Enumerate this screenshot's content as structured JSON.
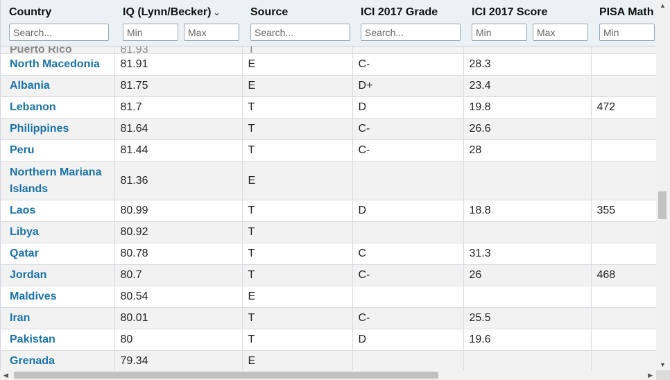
{
  "headers": {
    "country": {
      "title": "Country",
      "placeholder": "Search..."
    },
    "iq": {
      "title": "IQ (Lynn/Becker)",
      "min_placeholder": "Min",
      "max_placeholder": "Max",
      "sort_icon": "chevron-down-icon"
    },
    "source": {
      "title": "Source",
      "placeholder": "Search..."
    },
    "ici_grade": {
      "title": "ICI 2017 Grade",
      "placeholder": "Search..."
    },
    "ici_score": {
      "title": "ICI 2017 Score",
      "min_placeholder": "Min",
      "max_placeholder": "Max"
    },
    "pisa_math": {
      "title": "PISA Math Score",
      "min_placeholder": "Min"
    }
  },
  "partial_row": {
    "country": "Puerto Rico",
    "iq": "81.93",
    "source": "T"
  },
  "rows": [
    {
      "country": "North Macedonia",
      "iq": "81.91",
      "source": "E",
      "ici_grade": "C-",
      "ici_score": "28.3",
      "pisa_math": ""
    },
    {
      "country": "Albania",
      "iq": "81.75",
      "source": "E",
      "ici_grade": "D+",
      "ici_score": "23.4",
      "pisa_math": ""
    },
    {
      "country": "Lebanon",
      "iq": "81.7",
      "source": "T",
      "ici_grade": "D",
      "ici_score": "19.8",
      "pisa_math": "472"
    },
    {
      "country": "Philippines",
      "iq": "81.64",
      "source": "T",
      "ici_grade": "C-",
      "ici_score": "26.6",
      "pisa_math": ""
    },
    {
      "country": "Peru",
      "iq": "81.44",
      "source": "T",
      "ici_grade": "C-",
      "ici_score": "28",
      "pisa_math": ""
    },
    {
      "country": "Northern Mariana Islands",
      "iq": "81.36",
      "source": "E",
      "ici_grade": "",
      "ici_score": "",
      "pisa_math": ""
    },
    {
      "country": "Laos",
      "iq": "80.99",
      "source": "T",
      "ici_grade": "D",
      "ici_score": "18.8",
      "pisa_math": "355"
    },
    {
      "country": "Libya",
      "iq": "80.92",
      "source": "T",
      "ici_grade": "",
      "ici_score": "",
      "pisa_math": ""
    },
    {
      "country": "Qatar",
      "iq": "80.78",
      "source": "T",
      "ici_grade": "C",
      "ici_score": "31.3",
      "pisa_math": ""
    },
    {
      "country": "Jordan",
      "iq": "80.7",
      "source": "T",
      "ici_grade": "C-",
      "ici_score": "26",
      "pisa_math": "468"
    },
    {
      "country": "Maldives",
      "iq": "80.54",
      "source": "E",
      "ici_grade": "",
      "ici_score": "",
      "pisa_math": ""
    },
    {
      "country": "Iran",
      "iq": "80.01",
      "source": "T",
      "ici_grade": "C-",
      "ici_score": "25.5",
      "pisa_math": ""
    },
    {
      "country": "Pakistan",
      "iq": "80",
      "source": "T",
      "ici_grade": "D",
      "ici_score": "19.6",
      "pisa_math": ""
    },
    {
      "country": "Grenada",
      "iq": "79.34",
      "source": "E",
      "ici_grade": "",
      "ici_score": "",
      "pisa_math": ""
    }
  ],
  "colors": {
    "link": "#1a73a8",
    "header_bg": "#ecf1f5",
    "stripe": "#f2f2f2"
  }
}
